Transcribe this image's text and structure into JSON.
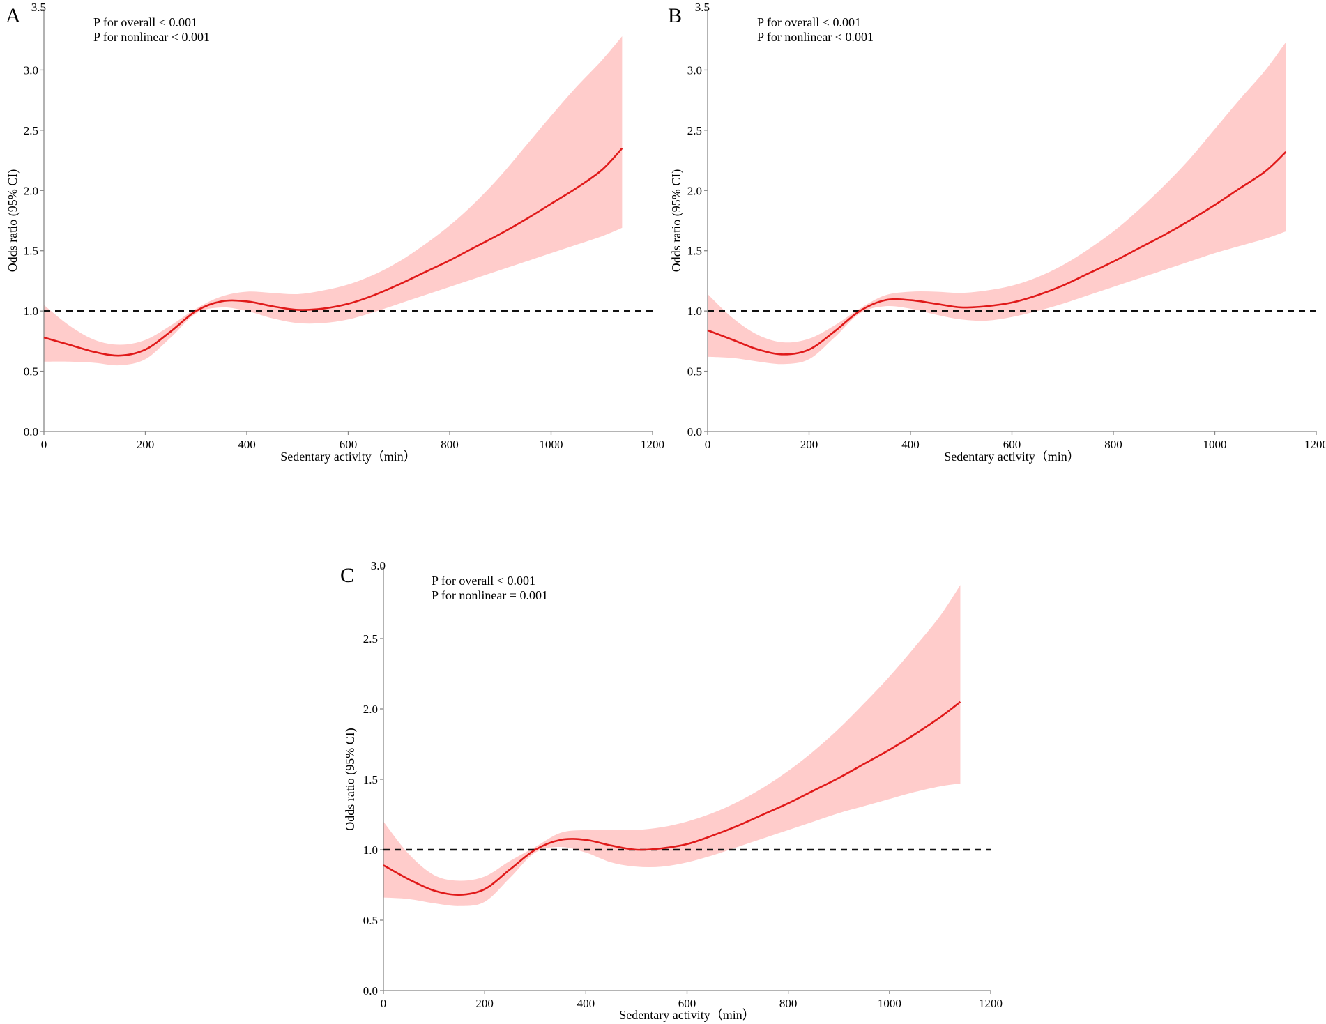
{
  "colors": {
    "curve": "#e01a1a",
    "band": "#ffcccb",
    "reference": "#111111",
    "axis": "#888888"
  },
  "chart_data": [
    {
      "panel": "A",
      "type": "line",
      "title": "",
      "xlabel": "Sedentary activity（min）",
      "ylabel": "Odds ratio (95% CI)",
      "xlim": [
        0,
        1200
      ],
      "ylim": [
        0,
        3.5
      ],
      "xticks": [
        "0",
        "200",
        "400",
        "600",
        "800",
        "1000",
        "1200"
      ],
      "yticks": [
        "0.0",
        "0.5",
        "1.0",
        "1.5",
        "2.0",
        "2.5",
        "3.0",
        "3.5"
      ],
      "reference_line": 1.0,
      "annotations": [
        "P for overall < 0.001",
        "P for nonlinear < 0.001"
      ],
      "series": [
        {
          "name": "Odds ratio",
          "x": [
            0,
            50,
            100,
            150,
            200,
            250,
            300,
            350,
            400,
            450,
            500,
            550,
            600,
            650,
            700,
            750,
            800,
            850,
            900,
            950,
            1000,
            1050,
            1100,
            1140
          ],
          "values": [
            0.78,
            0.72,
            0.66,
            0.63,
            0.68,
            0.83,
            1.0,
            1.08,
            1.08,
            1.04,
            1.01,
            1.02,
            1.06,
            1.13,
            1.22,
            1.32,
            1.42,
            1.53,
            1.64,
            1.76,
            1.89,
            2.02,
            2.17,
            2.35
          ]
        },
        {
          "name": "95% CI lower",
          "x": [
            0,
            50,
            100,
            150,
            200,
            250,
            300,
            350,
            400,
            450,
            500,
            550,
            600,
            650,
            700,
            750,
            800,
            850,
            900,
            950,
            1000,
            1050,
            1100,
            1140
          ],
          "values": [
            0.58,
            0.58,
            0.57,
            0.55,
            0.6,
            0.78,
            0.98,
            1.03,
            1.0,
            0.94,
            0.9,
            0.9,
            0.93,
            0.99,
            1.06,
            1.13,
            1.2,
            1.27,
            1.34,
            1.41,
            1.48,
            1.55,
            1.62,
            1.69
          ]
        },
        {
          "name": "95% CI upper",
          "x": [
            0,
            50,
            100,
            150,
            200,
            250,
            300,
            350,
            400,
            450,
            500,
            550,
            600,
            650,
            700,
            750,
            800,
            850,
            900,
            950,
            1000,
            1050,
            1100,
            1140
          ],
          "values": [
            1.05,
            0.88,
            0.76,
            0.72,
            0.76,
            0.88,
            1.02,
            1.12,
            1.16,
            1.15,
            1.14,
            1.17,
            1.22,
            1.3,
            1.41,
            1.55,
            1.71,
            1.9,
            2.12,
            2.37,
            2.62,
            2.86,
            3.08,
            3.28
          ]
        }
      ]
    },
    {
      "panel": "B",
      "type": "line",
      "title": "",
      "xlabel": "Sedentary activity（min）",
      "ylabel": "Odds ratio (95% CI)",
      "xlim": [
        0,
        1200
      ],
      "ylim": [
        0,
        3.5
      ],
      "xticks": [
        "0",
        "200",
        "400",
        "600",
        "800",
        "1000",
        "1200"
      ],
      "yticks": [
        "0.0",
        "0.5",
        "1.0",
        "1.5",
        "2.0",
        "2.5",
        "3.0",
        "3.5"
      ],
      "reference_line": 1.0,
      "annotations": [
        "P for overall < 0.001",
        "P for nonlinear < 0.001"
      ],
      "series": [
        {
          "name": "Odds ratio",
          "x": [
            0,
            50,
            100,
            150,
            200,
            250,
            300,
            350,
            400,
            450,
            500,
            550,
            600,
            650,
            700,
            750,
            800,
            850,
            900,
            950,
            1000,
            1050,
            1100,
            1140
          ],
          "values": [
            0.84,
            0.76,
            0.68,
            0.64,
            0.68,
            0.83,
            1.0,
            1.09,
            1.09,
            1.06,
            1.03,
            1.04,
            1.07,
            1.13,
            1.21,
            1.31,
            1.41,
            1.52,
            1.63,
            1.75,
            1.88,
            2.02,
            2.16,
            2.32
          ]
        },
        {
          "name": "95% CI lower",
          "x": [
            0,
            50,
            100,
            150,
            200,
            250,
            300,
            350,
            400,
            450,
            500,
            550,
            600,
            650,
            700,
            750,
            800,
            850,
            900,
            950,
            1000,
            1050,
            1100,
            1140
          ],
          "values": [
            0.62,
            0.61,
            0.58,
            0.56,
            0.6,
            0.78,
            0.98,
            1.04,
            1.02,
            0.97,
            0.93,
            0.92,
            0.95,
            1.0,
            1.06,
            1.13,
            1.2,
            1.27,
            1.34,
            1.41,
            1.48,
            1.54,
            1.6,
            1.66
          ]
        },
        {
          "name": "95% CI upper",
          "x": [
            0,
            50,
            100,
            150,
            200,
            250,
            300,
            350,
            400,
            450,
            500,
            550,
            600,
            650,
            700,
            750,
            800,
            850,
            900,
            950,
            1000,
            1050,
            1100,
            1140
          ],
          "values": [
            1.14,
            0.94,
            0.8,
            0.74,
            0.77,
            0.88,
            1.02,
            1.13,
            1.16,
            1.16,
            1.15,
            1.17,
            1.21,
            1.28,
            1.38,
            1.51,
            1.66,
            1.84,
            2.04,
            2.26,
            2.51,
            2.76,
            3.0,
            3.23
          ]
        }
      ]
    },
    {
      "panel": "C",
      "type": "line",
      "title": "",
      "xlabel": "Sedentary activity（min）",
      "ylabel": "Odds ratio (95% CI)",
      "xlim": [
        0,
        1200
      ],
      "ylim": [
        0,
        3.0
      ],
      "xticks": [
        "0",
        "200",
        "400",
        "600",
        "800",
        "1000",
        "1200"
      ],
      "yticks": [
        "0.0",
        "0.5",
        "1.0",
        "1.5",
        "2.0",
        "2.5",
        "3.0"
      ],
      "reference_line": 1.0,
      "annotations": [
        "P for overall < 0.001",
        "P for nonlinear = 0.001"
      ],
      "series": [
        {
          "name": "Odds ratio",
          "x": [
            0,
            50,
            100,
            150,
            200,
            250,
            300,
            350,
            400,
            450,
            500,
            550,
            600,
            650,
            700,
            750,
            800,
            850,
            900,
            950,
            1000,
            1050,
            1100,
            1140
          ],
          "values": [
            0.89,
            0.79,
            0.71,
            0.68,
            0.72,
            0.86,
            1.0,
            1.07,
            1.07,
            1.03,
            1.0,
            1.01,
            1.04,
            1.1,
            1.17,
            1.25,
            1.33,
            1.42,
            1.51,
            1.61,
            1.71,
            1.82,
            1.94,
            2.05
          ]
        },
        {
          "name": "95% CI lower",
          "x": [
            0,
            50,
            100,
            150,
            200,
            250,
            300,
            350,
            400,
            450,
            500,
            550,
            600,
            650,
            700,
            750,
            800,
            850,
            900,
            950,
            1000,
            1050,
            1100,
            1140
          ],
          "values": [
            0.66,
            0.65,
            0.62,
            0.6,
            0.63,
            0.8,
            0.98,
            1.02,
            0.98,
            0.91,
            0.88,
            0.88,
            0.91,
            0.96,
            1.02,
            1.08,
            1.14,
            1.2,
            1.26,
            1.31,
            1.36,
            1.41,
            1.45,
            1.47
          ]
        },
        {
          "name": "95% CI upper",
          "x": [
            0,
            50,
            100,
            150,
            200,
            250,
            300,
            350,
            400,
            450,
            500,
            550,
            600,
            650,
            700,
            750,
            800,
            850,
            900,
            950,
            1000,
            1050,
            1100,
            1140
          ],
          "values": [
            1.2,
            0.97,
            0.82,
            0.78,
            0.81,
            0.92,
            1.02,
            1.12,
            1.14,
            1.14,
            1.14,
            1.16,
            1.2,
            1.26,
            1.34,
            1.44,
            1.56,
            1.7,
            1.86,
            2.04,
            2.23,
            2.44,
            2.66,
            2.88
          ]
        }
      ]
    }
  ]
}
